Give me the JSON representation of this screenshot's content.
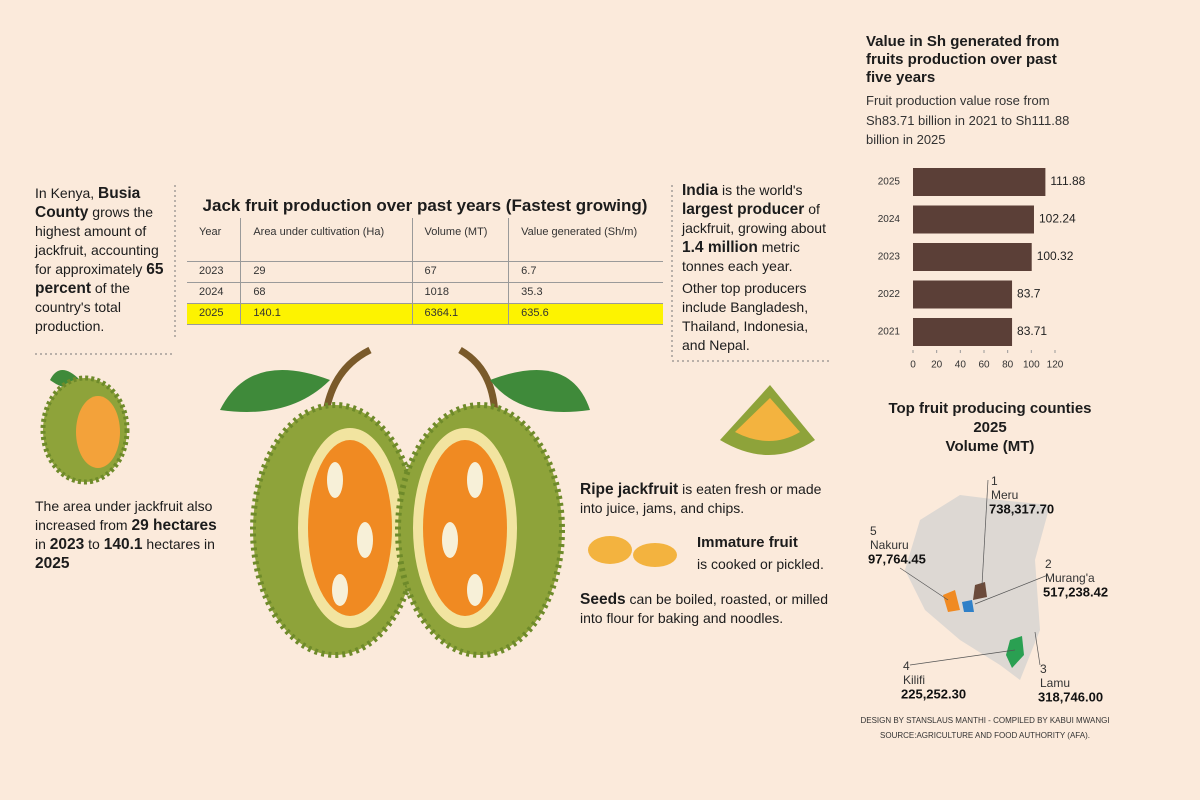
{
  "intro": {
    "segments": [
      "In Kenya, ",
      "Busia County",
      " grows the highest amount of jackfruit, accounting for approximately ",
      "65 percent",
      " of the country's total production."
    ]
  },
  "area_note": {
    "segments": [
      "The area under jackfruit also increased from ",
      "29 hectares",
      " in ",
      "2023",
      " to ",
      "140.1",
      " hectares in ",
      "2025"
    ]
  },
  "table": {
    "title": "Jack fruit production over past years (Fastest growing)",
    "header": [
      "Year",
      "Area under cultivation (Ha)",
      "Volume (MT)",
      "Value generated (Sh/m)"
    ],
    "rows": [
      [
        2023,
        29,
        67,
        6.7
      ],
      [
        2024,
        68,
        1018,
        35.3
      ],
      [
        2025,
        140.1,
        6364.1,
        635.6
      ]
    ]
  },
  "india": {
    "segments": [
      "India",
      " is the world's ",
      "largest producer",
      " of jackfruit, growing about ",
      "1.4 million",
      " metric tonnes each year."
    ]
  },
  "india_more": "Other top producers include Bangladesh, Thailand, Indonesia, and Nepal.",
  "ripe": {
    "segments": [
      "Ripe jackfruit",
      " is eaten fresh or made into juice, jams, and chips."
    ]
  },
  "immature": {
    "title": "Immature fruit",
    "text": "is cooked or pickled."
  },
  "seeds": {
    "segments": [
      "Seeds",
      " can be boiled, roasted, or milled into flour for baking and noodles."
    ]
  },
  "chart_data": {
    "type": "bar",
    "orientation": "horizontal",
    "title": "Value in Sh generated from fruits production over past five years",
    "subtitle": "Fruit production value rose from Sh83.71 billion in 2021 to Sh111.88 billion in 2025",
    "categories": [
      "2025",
      "2024",
      "2023",
      "2022",
      "2021"
    ],
    "values": [
      111.88,
      102.24,
      100.32,
      83.7,
      83.71
    ],
    "color": "#5b3f37",
    "xlim": [
      0,
      120
    ],
    "xticks": [
      0,
      20,
      40,
      60,
      80,
      100,
      120
    ]
  },
  "map": {
    "title_lines": [
      "Top fruit producing counties",
      "2025",
      "Volume (MT)"
    ],
    "counties": [
      {
        "rank": 1,
        "name": "Meru",
        "volume": "738,317.70"
      },
      {
        "rank": 2,
        "name": "Murang'a",
        "volume": "517,238.42"
      },
      {
        "rank": 3,
        "name": "Lamu",
        "volume": "318,746.00"
      },
      {
        "rank": 4,
        "name": "Kilifi",
        "volume": "225,252.30"
      },
      {
        "rank": 5,
        "name": "Nakuru",
        "volume": "97,764.45"
      }
    ]
  },
  "credits": [
    "DESIGN BY STANSLAUS MANTHI  - COMPILED BY KABUI MWANGI",
    "SOURCE:AGRICULTURE AND FOOD AUTHORITY (AFA)."
  ]
}
